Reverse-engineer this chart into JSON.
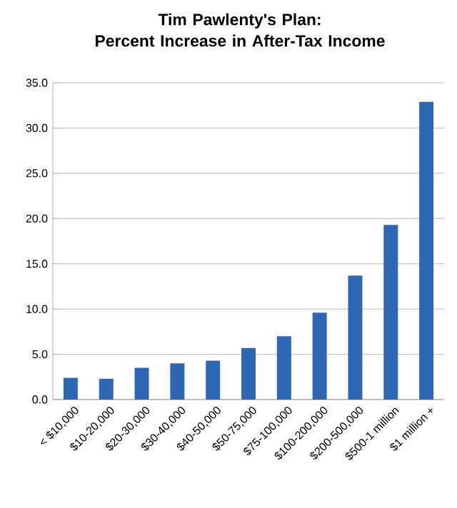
{
  "chart_data": {
    "type": "bar",
    "title": "Tim Pawlenty's Plan:\nPercent Increase in After-Tax Income",
    "categories": [
      "< $10,000",
      "$10-20,000",
      "$20-30,000",
      "$30-40,000",
      "$40-50,000",
      "$50-75,000",
      "$75-100,000",
      "$100-200,000",
      "$200-500,000",
      "$500-1 million",
      "$1 million +"
    ],
    "values": [
      2.4,
      2.3,
      3.5,
      4.0,
      4.3,
      5.7,
      7.0,
      9.6,
      13.7,
      19.3,
      32.9
    ],
    "color": "#2e67b4",
    "ylim": [
      0,
      35
    ],
    "yticks": [
      {
        "value": 0,
        "label": "0.0"
      },
      {
        "value": 5,
        "label": "5.0"
      },
      {
        "value": 10,
        "label": "10.0"
      },
      {
        "value": 15,
        "label": "15.0"
      },
      {
        "value": 20,
        "label": "20.0"
      },
      {
        "value": 25,
        "label": "25.0"
      },
      {
        "value": 30,
        "label": "30.0"
      },
      {
        "value": 35,
        "label": "35.0"
      }
    ],
    "grid": "y"
  }
}
